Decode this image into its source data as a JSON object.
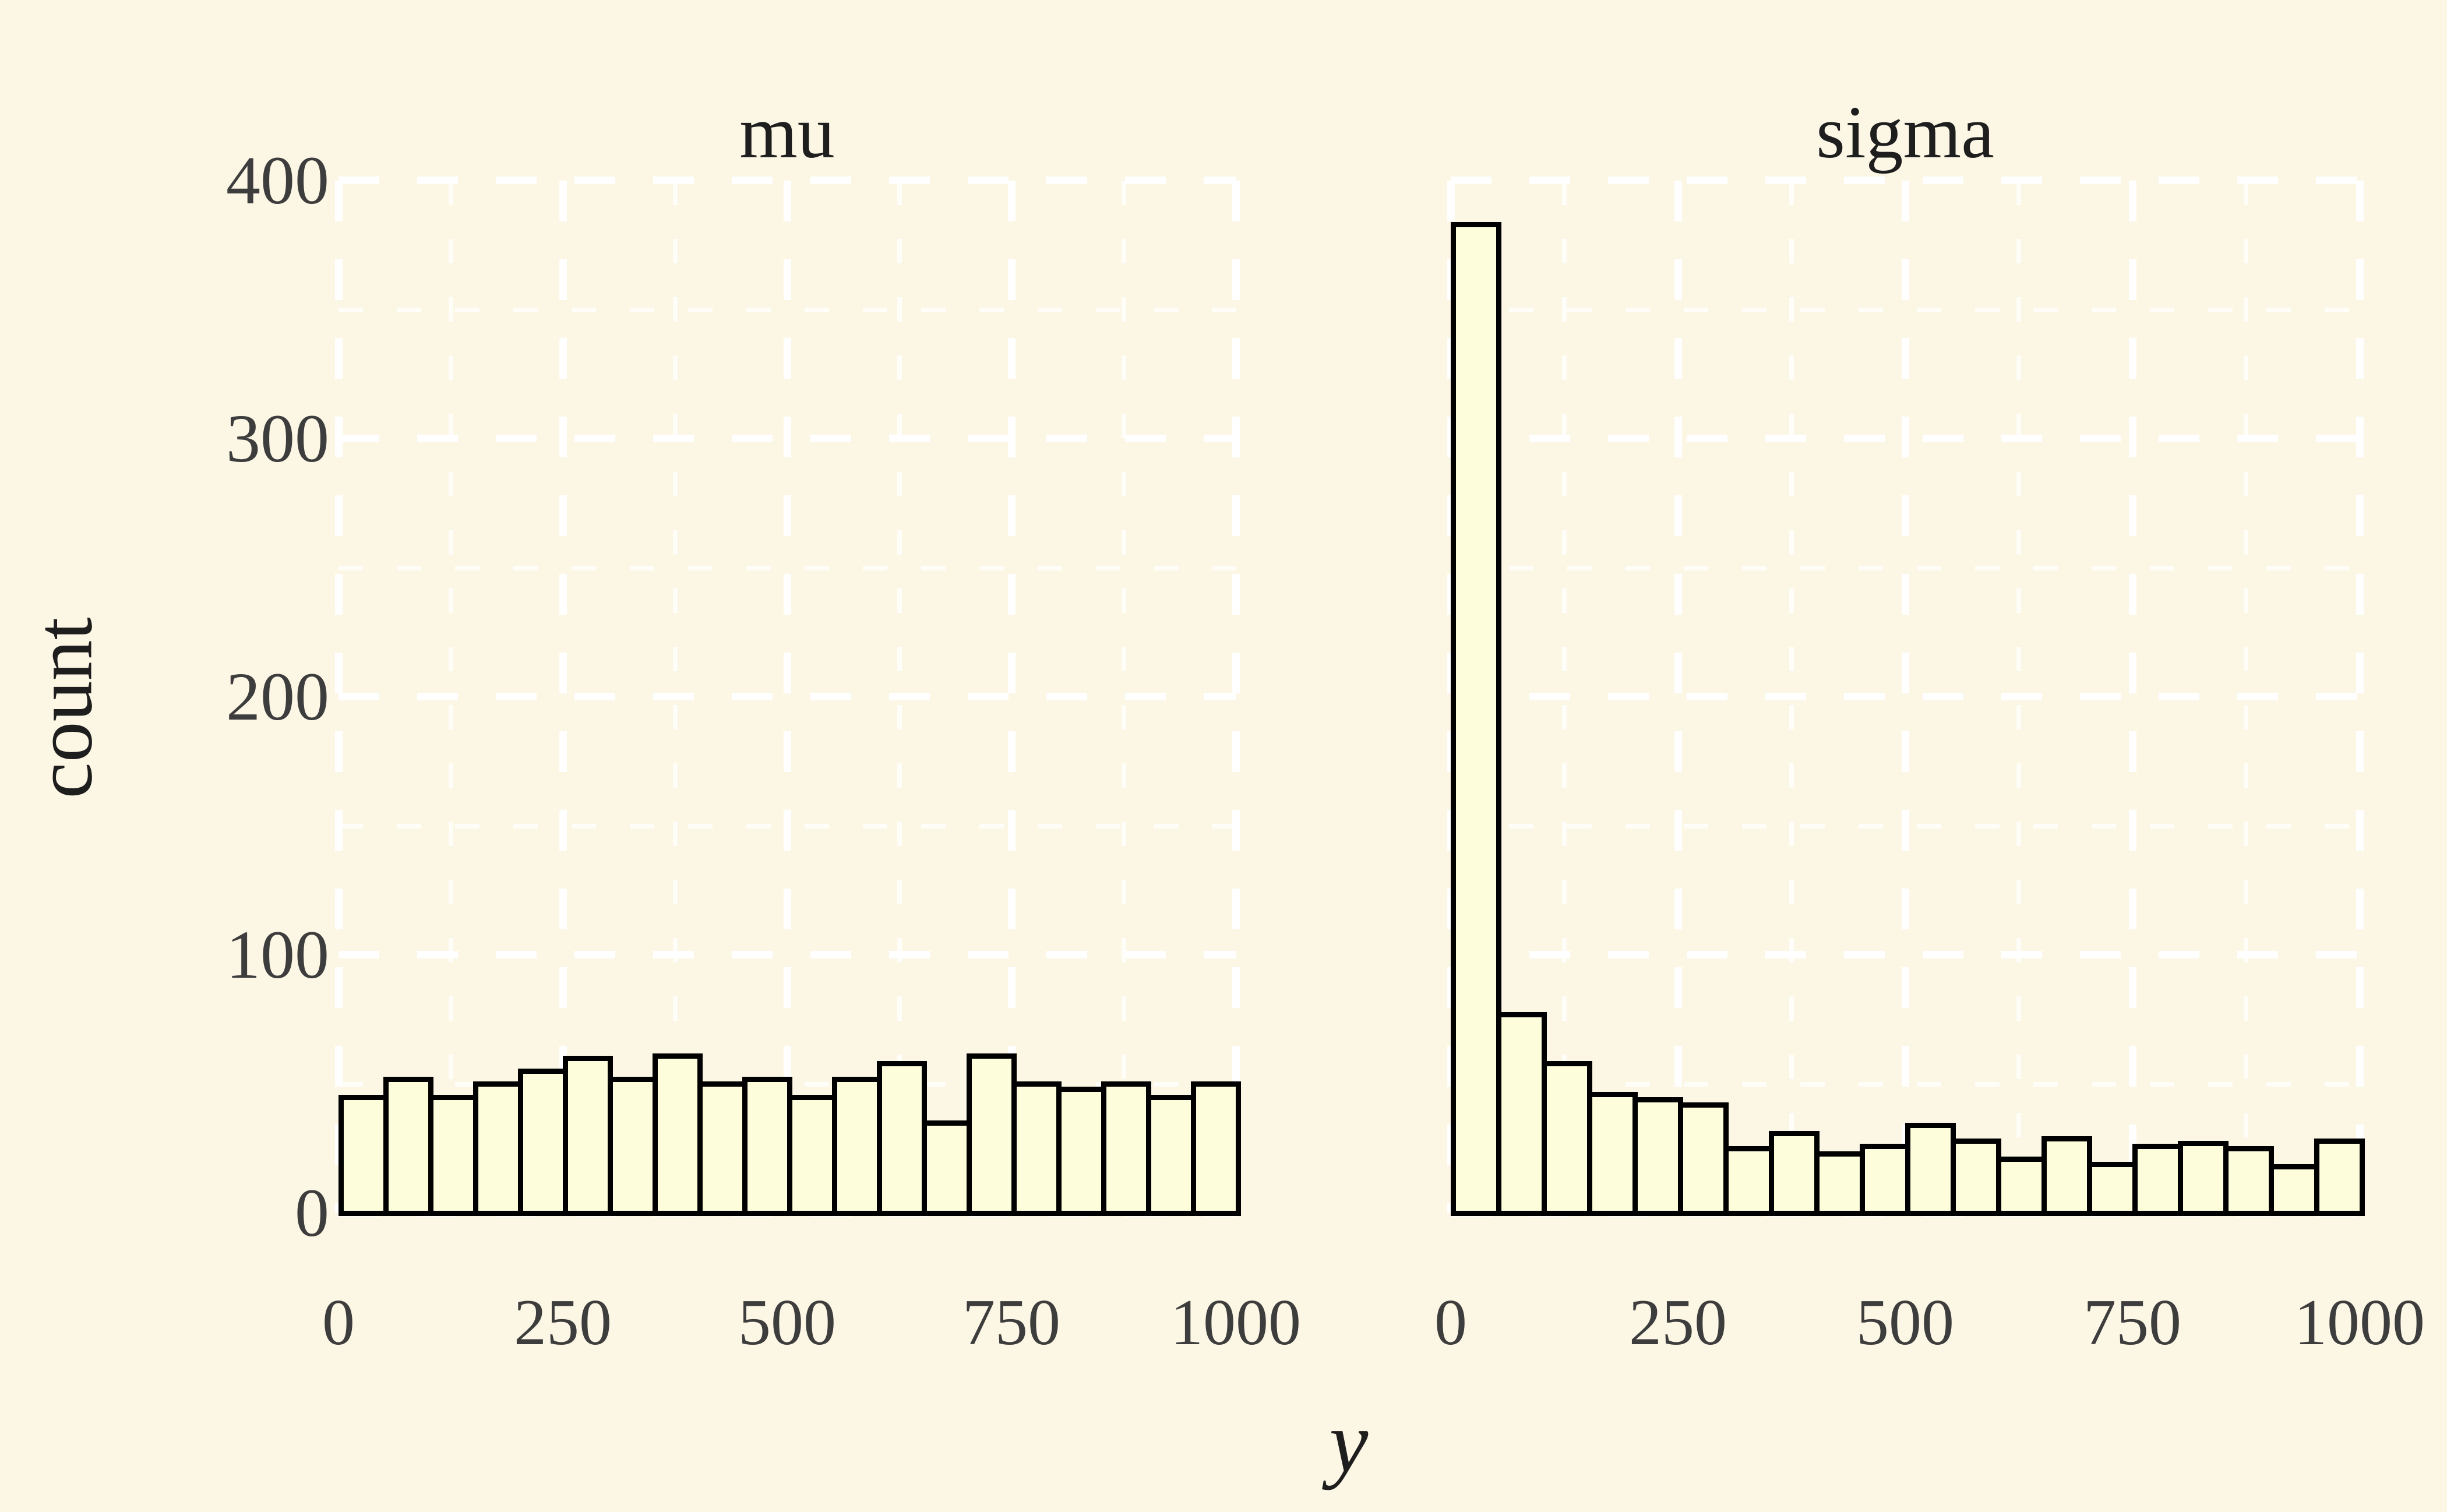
{
  "figure": {
    "background": "#FCF6E4",
    "bar_fill": "#FDFDDB",
    "bar_stroke": "#000000",
    "grid_color": "#FFFFFF",
    "title_color": "#1E1E1E",
    "tick_color": "#3D3D3D",
    "ylabel": "count",
    "xlabel": "y"
  },
  "chart_data": {
    "type": "bar",
    "subtype": "faceted-histogram",
    "title": "",
    "xlabel": "y",
    "ylabel": "count",
    "facets": [
      {
        "title": "mu",
        "counts": [
          45,
          52,
          45,
          50,
          55,
          60,
          52,
          61,
          50,
          52,
          45,
          52,
          58,
          35,
          61,
          50,
          48,
          50,
          45,
          50
        ]
      },
      {
        "title": "sigma",
        "counts": [
          383,
          77,
          58,
          46,
          44,
          42,
          25,
          31,
          23,
          26,
          34,
          28,
          21,
          29,
          19,
          26,
          27,
          25,
          18,
          28
        ]
      }
    ],
    "bins": {
      "start": 0,
      "end": 1000,
      "n_bins": 20,
      "bin_width": 50
    },
    "x_ticks": [
      0,
      250,
      500,
      750,
      1000
    ],
    "y_ticks": [
      0,
      100,
      200,
      300,
      400
    ],
    "x_minor": [
      125,
      375,
      625,
      875
    ],
    "y_minor": [
      50,
      150,
      250,
      350
    ],
    "xlim": [
      0,
      1000
    ],
    "ylim": [
      0,
      400
    ],
    "grid": {
      "style": "dashed",
      "color": "#FFFFFF",
      "major": true,
      "minor": true
    },
    "legend": "none"
  }
}
